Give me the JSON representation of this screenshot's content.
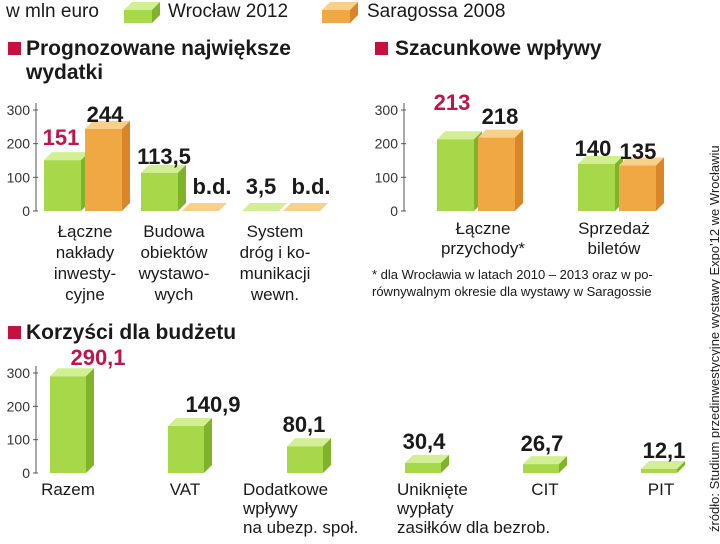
{
  "header": {
    "unit": "w mln euro",
    "legend": [
      {
        "label": "Wrocław 2012",
        "color": "#a6d84a"
      },
      {
        "label": "Saragossa 2008",
        "color": "#f0a844"
      }
    ]
  },
  "colors": {
    "green": "#a6d84a",
    "green_dark": "#7fb42a",
    "green_light": "#d2ef96",
    "orange": "#f0a844",
    "orange_dark": "#d9862a",
    "orange_light": "#f8d08a",
    "accent": "#c8103e"
  },
  "source": "źródło: Studium przedinwestycyjne wystawy Expo'12 we Wrocławiu",
  "note": {
    "line1": "* dla Wrocławia w latach 2010 – 2013 oraz w po-",
    "line2": "równywalnym okresie dla wystawy w Saragossie"
  },
  "chart_data": [
    {
      "type": "bar",
      "title": "Prognozowane największe wydatki",
      "title_lines": [
        "Prognozowane największe",
        "wydatki"
      ],
      "yticks": [
        "300",
        "200",
        "100",
        "0"
      ],
      "ylim": [
        0,
        300
      ],
      "categories": [
        {
          "lines": [
            "Łączne",
            "nakłady",
            "inwesty-",
            "cyjne"
          ]
        },
        {
          "lines": [
            "Budowa",
            "obiektów",
            "wystawo-",
            "wych"
          ]
        },
        {
          "lines": [
            "System",
            "dróg i ko-",
            "munikacji",
            "wewn."
          ]
        }
      ],
      "series": [
        {
          "name": "Wrocław 2012",
          "values": [
            151,
            113.5,
            3.5
          ],
          "labels": [
            "151",
            "113,5",
            "3,5"
          ]
        },
        {
          "name": "Saragossa 2008",
          "values": [
            244,
            null,
            null
          ],
          "labels": [
            "244",
            "b.d.",
            "b.d."
          ]
        }
      ]
    },
    {
      "type": "bar",
      "title": "Szacunkowe wpływy",
      "title_lines": [
        "Szacunkowe wpływy"
      ],
      "yticks": [
        "300",
        "200",
        "100",
        "0"
      ],
      "ylim": [
        0,
        300
      ],
      "categories": [
        {
          "lines": [
            "Łączne",
            "przychody*"
          ]
        },
        {
          "lines": [
            "Sprzedaż",
            "biletów"
          ]
        }
      ],
      "series": [
        {
          "name": "Wrocław 2012",
          "values": [
            213,
            140
          ],
          "labels": [
            "213",
            "140"
          ]
        },
        {
          "name": "Saragossa 2008",
          "values": [
            218,
            135
          ],
          "labels": [
            "218",
            "135"
          ]
        }
      ]
    },
    {
      "type": "bar",
      "title": "Korzyści dla budżetu",
      "title_lines": [
        "Korzyści dla budżetu"
      ],
      "yticks": [
        "300",
        "200",
        "100",
        "0"
      ],
      "ylim": [
        0,
        300
      ],
      "categories": [
        {
          "lines": [
            "Razem"
          ]
        },
        {
          "lines": [
            "VAT"
          ]
        },
        {
          "lines": [
            "Dodatkowe",
            "wpływy",
            "na ubezp. społ."
          ]
        },
        {
          "lines": [
            "Uniknięte",
            "wypłaty",
            "zasiłków dla bezrob."
          ]
        },
        {
          "lines": [
            "CIT"
          ]
        },
        {
          "lines": [
            "PIT"
          ]
        }
      ],
      "series": [
        {
          "name": "Wrocław 2012",
          "values": [
            290.1,
            140.9,
            80.1,
            30.4,
            26.7,
            12.1
          ],
          "labels": [
            "290,1",
            "140,9",
            "80,1",
            "30,4",
            "26,7",
            "12,1"
          ]
        }
      ]
    }
  ]
}
